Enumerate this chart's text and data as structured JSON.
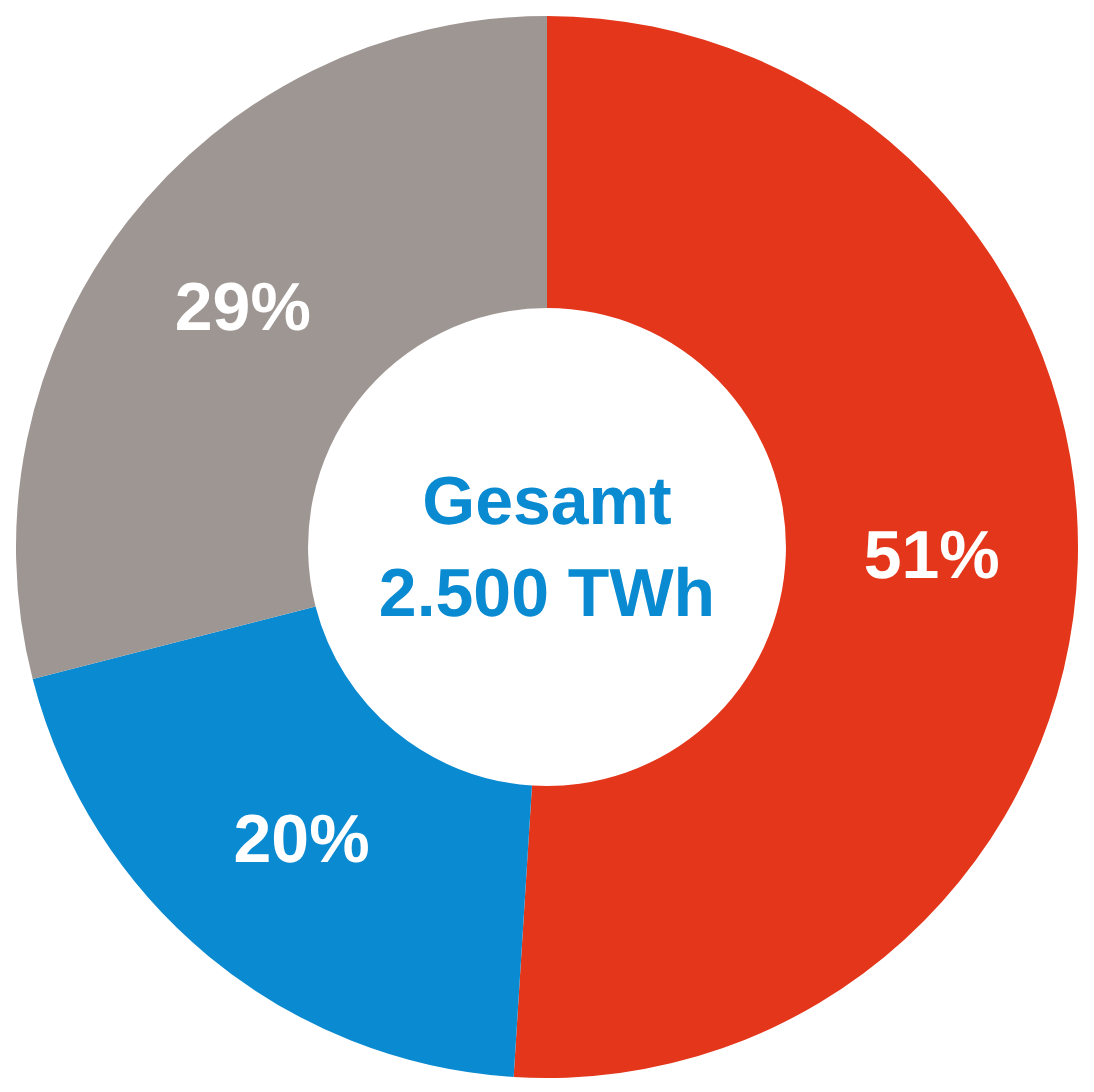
{
  "chart_data": {
    "type": "donut",
    "title": "Gesamt",
    "subtitle": "2.500 TWh",
    "categories": [
      null,
      null,
      null
    ],
    "values": [
      51,
      20,
      29
    ],
    "colors": [
      "#e3361a",
      "#0a8ad0",
      "#9e9692"
    ],
    "value_labels": [
      "51%",
      "20%",
      "29%"
    ]
  }
}
